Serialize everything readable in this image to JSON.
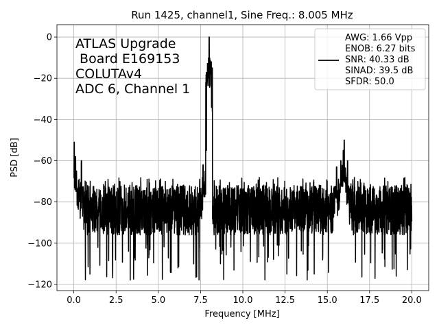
{
  "chart_data": {
    "type": "line",
    "title": "Run 1425, channel1, Sine Freq.: 8.005 MHz",
    "xlabel": "Frequency [MHz]",
    "ylabel": "PSD [dB]",
    "xlim": [
      -1.0,
      21.0
    ],
    "ylim": [
      -123,
      6
    ],
    "xticks": [
      0.0,
      2.5,
      5.0,
      7.5,
      10.0,
      12.5,
      15.0,
      17.5,
      20.0
    ],
    "xtick_labels": [
      "0.0",
      "2.5",
      "5.0",
      "7.5",
      "10.0",
      "12.5",
      "15.0",
      "17.5",
      "20.0"
    ],
    "yticks": [
      0,
      -20,
      -40,
      -60,
      -80,
      -100,
      -120
    ],
    "ytick_labels": [
      "0",
      "−20",
      "−40",
      "−60",
      "−80",
      "−100",
      "−120"
    ],
    "grid": true,
    "legend_position": "top-right",
    "annotation_lines": [
      "ATLAS Upgrade",
      " Board E169153",
      "COLUTAv4",
      "ADC 6, Channel 1"
    ],
    "legend_lines": [
      "AWG: 1.66 Vpp",
      "ENOB: 6.27 bits",
      "SNR: 40.33 dB",
      "SINAD: 39.5 dB",
      "SFDR: 50.0"
    ],
    "series": [
      {
        "color": "#000000",
        "x_range": [
          0.0,
          20.0
        ],
        "noise_floor_db": [
          -100,
          -72
        ],
        "spikes": [
          {
            "x": 0.02,
            "y": -51
          },
          {
            "x": 0.1,
            "y": -58
          },
          {
            "x": 0.45,
            "y": -60
          },
          {
            "x": 7.65,
            "y": -62
          },
          {
            "x": 7.85,
            "y": -55
          },
          {
            "x": 8.005,
            "y": 0
          },
          {
            "x": 15.55,
            "y": -63
          },
          {
            "x": 15.8,
            "y": -60
          },
          {
            "x": 15.95,
            "y": -55
          },
          {
            "x": 16.0,
            "y": -50
          },
          {
            "x": 16.2,
            "y": -60
          }
        ]
      }
    ]
  }
}
